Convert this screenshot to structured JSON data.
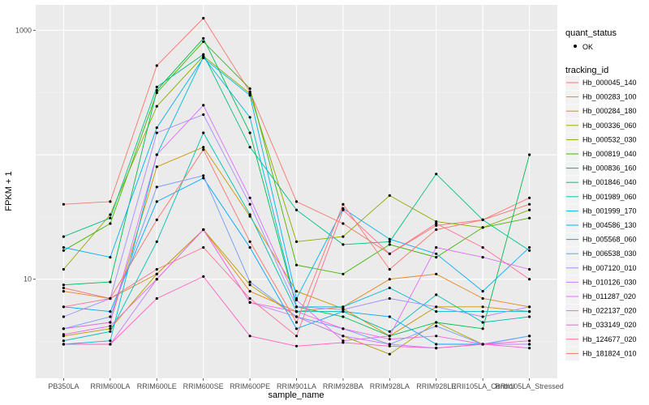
{
  "chart_data": {
    "type": "line",
    "xlabel": "sample_name",
    "ylabel": "FPKM + 1",
    "y_scale": "log10",
    "ylim": [
      1.6,
      1600
    ],
    "y_ticks": [
      10,
      1000
    ],
    "y_tick_labels": [
      "10",
      "1000"
    ],
    "grid": true,
    "legend_position": "right",
    "categories": [
      "PB350LA",
      "RRIM600LA",
      "RRIM600LE",
      "RRIM600SE",
      "RRIM600PE",
      "RRIM901LA",
      "RRIM928BA",
      "RRIM928LA",
      "RRIM928LE",
      "RRII105LA_Control",
      "RRII105LA_Stressed"
    ],
    "quant_status": {
      "title": "quant_status",
      "entries": [
        "OK"
      ]
    },
    "tracking_title": "tracking_id",
    "series": [
      {
        "name": "Hb_000045_140",
        "color": "#F8766D",
        "values": [
          40,
          42,
          520,
          1250,
          320,
          42,
          28,
          16,
          27,
          30,
          45
        ]
      },
      {
        "name": "Hb_000283_100",
        "color": "#E7851E",
        "values": [
          8,
          7,
          11,
          25,
          8,
          5.5,
          6,
          10,
          11,
          7,
          6
        ]
      },
      {
        "name": "Hb_000284_180",
        "color": "#D09400",
        "values": [
          4,
          4.5,
          80,
          115,
          32,
          8,
          5.8,
          3.5,
          6,
          6,
          5.5
        ]
      },
      {
        "name": "Hb_000336_060",
        "color": "#B2A100",
        "values": [
          3.5,
          4,
          11,
          25,
          9,
          5,
          3.5,
          2.5,
          4.5,
          3,
          3
        ]
      },
      {
        "name": "Hb_000532_030",
        "color": "#89AC00",
        "values": [
          12,
          33,
          245,
          620,
          310,
          20,
          22,
          47,
          29,
          26,
          36
        ]
      },
      {
        "name": "Hb_000819_040",
        "color": "#45B500",
        "values": [
          17,
          28,
          315,
          810,
          340,
          13,
          11,
          19,
          15,
          26,
          31
        ]
      },
      {
        "name": "Hb_000836_160",
        "color": "#00BC51",
        "values": [
          9,
          9.5,
          330,
          860,
          150,
          6,
          5,
          3.5,
          4.5,
          4,
          100
        ]
      },
      {
        "name": "Hb_001846_040",
        "color": "#00C087",
        "values": [
          22,
          31,
          350,
          640,
          115,
          36,
          19,
          20,
          70,
          30,
          17
        ]
      },
      {
        "name": "Hb_001989_060",
        "color": "#00C0B2",
        "values": [
          3.2,
          3.8,
          20,
          150,
          33,
          5.5,
          5.5,
          3.8,
          7.5,
          4.5,
          5
        ]
      },
      {
        "name": "Hb_001999_170",
        "color": "#00BCD6",
        "values": [
          3,
          3.2,
          100,
          610,
          200,
          6,
          6,
          8.5,
          5.5,
          5.5,
          5.5
        ]
      },
      {
        "name": "Hb_004586_130",
        "color": "#00B3F2",
        "values": [
          18,
          15,
          165,
          600,
          300,
          7,
          37,
          21,
          16,
          8,
          18
        ]
      },
      {
        "name": "Hb_005568_060",
        "color": "#00A6FF",
        "values": [
          6,
          5.5,
          42,
          65,
          18,
          4,
          5.5,
          5,
          3,
          3,
          3.5
        ]
      },
      {
        "name": "Hb_006538_030",
        "color": "#6F9AFF",
        "values": [
          4,
          5,
          55,
          68,
          9.5,
          5,
          4,
          3,
          4.2,
          3,
          3.5
        ]
      },
      {
        "name": "Hb_007120_010",
        "color": "#A48DFF",
        "values": [
          5,
          7,
          150,
          210,
          40,
          6,
          5.7,
          7,
          6,
          5,
          6
        ]
      },
      {
        "name": "Hb_010126_030",
        "color": "#C77CFF",
        "values": [
          3,
          3,
          10,
          25,
          6.5,
          5,
          3.5,
          3,
          2.8,
          3,
          3
        ]
      },
      {
        "name": "Hb_011287_020",
        "color": "#E06DFC",
        "values": [
          4,
          4.5,
          100,
          250,
          45,
          6.8,
          3.2,
          3.5,
          18,
          15,
          12
        ]
      },
      {
        "name": "Hb_022137_020",
        "color": "#F564E3",
        "values": [
          3.6,
          4.2,
          10,
          25,
          6.5,
          5.5,
          4,
          3.3,
          3.5,
          3,
          2.8
        ]
      },
      {
        "name": "Hb_033149_020",
        "color": "#FF61C3",
        "values": [
          3,
          3,
          7,
          10.5,
          3.5,
          2.9,
          3.1,
          2.9,
          2.8,
          3,
          3.2
        ]
      },
      {
        "name": "Hb_124677_020",
        "color": "#FF6C92",
        "values": [
          6,
          7,
          12,
          18,
          7,
          3.5,
          36,
          16,
          28,
          18,
          10
        ]
      },
      {
        "name": "Hb_181824_010",
        "color": "#F8766D",
        "values": [
          8.5,
          7,
          30,
          110,
          20,
          4.5,
          40,
          12,
          25,
          30,
          40
        ]
      }
    ]
  }
}
